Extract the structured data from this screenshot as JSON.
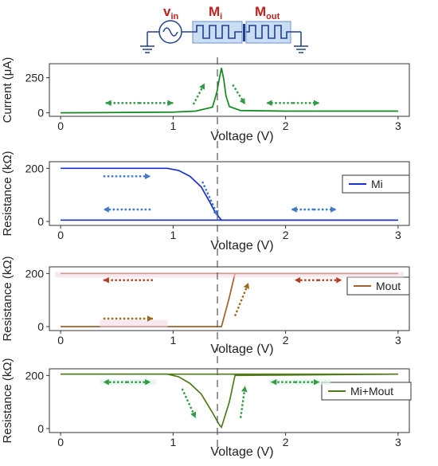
{
  "circuit": {
    "labels": [
      {
        "main": "v",
        "sub": "in"
      },
      {
        "main": "M",
        "sub": "i"
      },
      {
        "main": "M",
        "sub": "out"
      }
    ]
  },
  "x_tick_labels": [
    "0",
    "1",
    "2",
    "3"
  ],
  "colors": {
    "current": "#0f8a1f",
    "mi": "#1b2fd0",
    "mout": "#a0612b",
    "sum": "#4f7b19",
    "blue_arrow": "#3d79c4",
    "red_arrow": "#b53b1e",
    "brown_arrow": "#9c6a1f",
    "green_arrow": "#2f9a45",
    "label_red": "#c0221c"
  },
  "chart_data": [
    {
      "type": "line",
      "xlabel": "Voltage (V)",
      "ylabel": "Current (μA)",
      "xlim": [
        -0.1,
        3.1
      ],
      "ylim": [
        -25,
        350
      ],
      "yticks": [
        "0",
        "250"
      ],
      "ytick_values": [
        0,
        250
      ],
      "series": [
        {
          "values": [
            [
              0,
              0
            ],
            [
              0.5,
              2
            ],
            [
              1.0,
              5
            ],
            [
              1.2,
              12
            ],
            [
              1.35,
              40
            ],
            [
              1.39,
              150
            ],
            [
              1.41,
              240
            ],
            [
              1.43,
              320
            ],
            [
              1.45,
              240
            ],
            [
              1.47,
              120
            ],
            [
              1.5,
              45
            ],
            [
              1.6,
              16
            ],
            [
              2.0,
              12
            ],
            [
              3.0,
              12
            ]
          ]
        }
      ]
    },
    {
      "type": "line",
      "xlabel": "Voltage (V)",
      "ylabel": "Resistance (kΩ)",
      "xlim": [
        -0.1,
        3.1
      ],
      "ylim": [
        -15,
        225
      ],
      "yticks": [
        "0",
        "200"
      ],
      "ytick_values": [
        0,
        200
      ],
      "legend": {
        "labels": [
          "Mi"
        ],
        "position": "right"
      },
      "series": [
        {
          "name": "Mi",
          "values": [
            [
              0,
              200
            ],
            [
              0.95,
              200
            ],
            [
              1.05,
              192
            ],
            [
              1.15,
              170
            ],
            [
              1.25,
              130
            ],
            [
              1.33,
              70
            ],
            [
              1.38,
              30
            ],
            [
              1.43,
              5
            ],
            [
              3.0,
              5
            ]
          ]
        },
        {
          "name": "Mi",
          "values": [
            [
              0,
              5
            ],
            [
              3.0,
              5
            ]
          ]
        }
      ]
    },
    {
      "type": "line",
      "xlabel": "Voltage (V)",
      "ylabel": "Resistance (kΩ)",
      "xlim": [
        -0.1,
        3.1
      ],
      "ylim": [
        -15,
        225
      ],
      "yticks": [
        "0",
        "200"
      ],
      "ytick_values": [
        0,
        200
      ],
      "legend": {
        "labels": [
          "Mout"
        ],
        "position": "right"
      },
      "series": [
        {
          "name": "Mout",
          "values": [
            [
              0,
              0
            ],
            [
              1.43,
              0
            ],
            [
              1.5,
              110
            ],
            [
              1.55,
              200
            ],
            [
              3.0,
              200
            ]
          ]
        },
        {
          "name": "Mout",
          "values": [
            [
              0,
              200
            ],
            [
              3.0,
              200
            ]
          ]
        }
      ]
    },
    {
      "type": "line",
      "xlabel": "Voltage (V)",
      "ylabel": "Resistance (kΩ)",
      "xlim": [
        -0.1,
        3.1
      ],
      "ylim": [
        -15,
        225
      ],
      "yticks": [
        "0",
        "200"
      ],
      "ytick_values": [
        0,
        200
      ],
      "legend": {
        "labels": [
          "Mi+Mout"
        ],
        "position": "right"
      },
      "series": [
        {
          "name": "Mi+Mout",
          "values": [
            [
              0,
              205
            ],
            [
              0.95,
              205
            ],
            [
              1.05,
              195
            ],
            [
              1.15,
              170
            ],
            [
              1.25,
              130
            ],
            [
              1.35,
              60
            ],
            [
              1.41,
              15
            ],
            [
              1.43,
              5
            ],
            [
              1.5,
              100
            ],
            [
              1.55,
              200
            ],
            [
              3.0,
              205
            ]
          ]
        },
        {
          "name": "Mi+Mout",
          "values": [
            [
              0,
              205
            ],
            [
              3.0,
              205
            ]
          ]
        }
      ]
    }
  ]
}
